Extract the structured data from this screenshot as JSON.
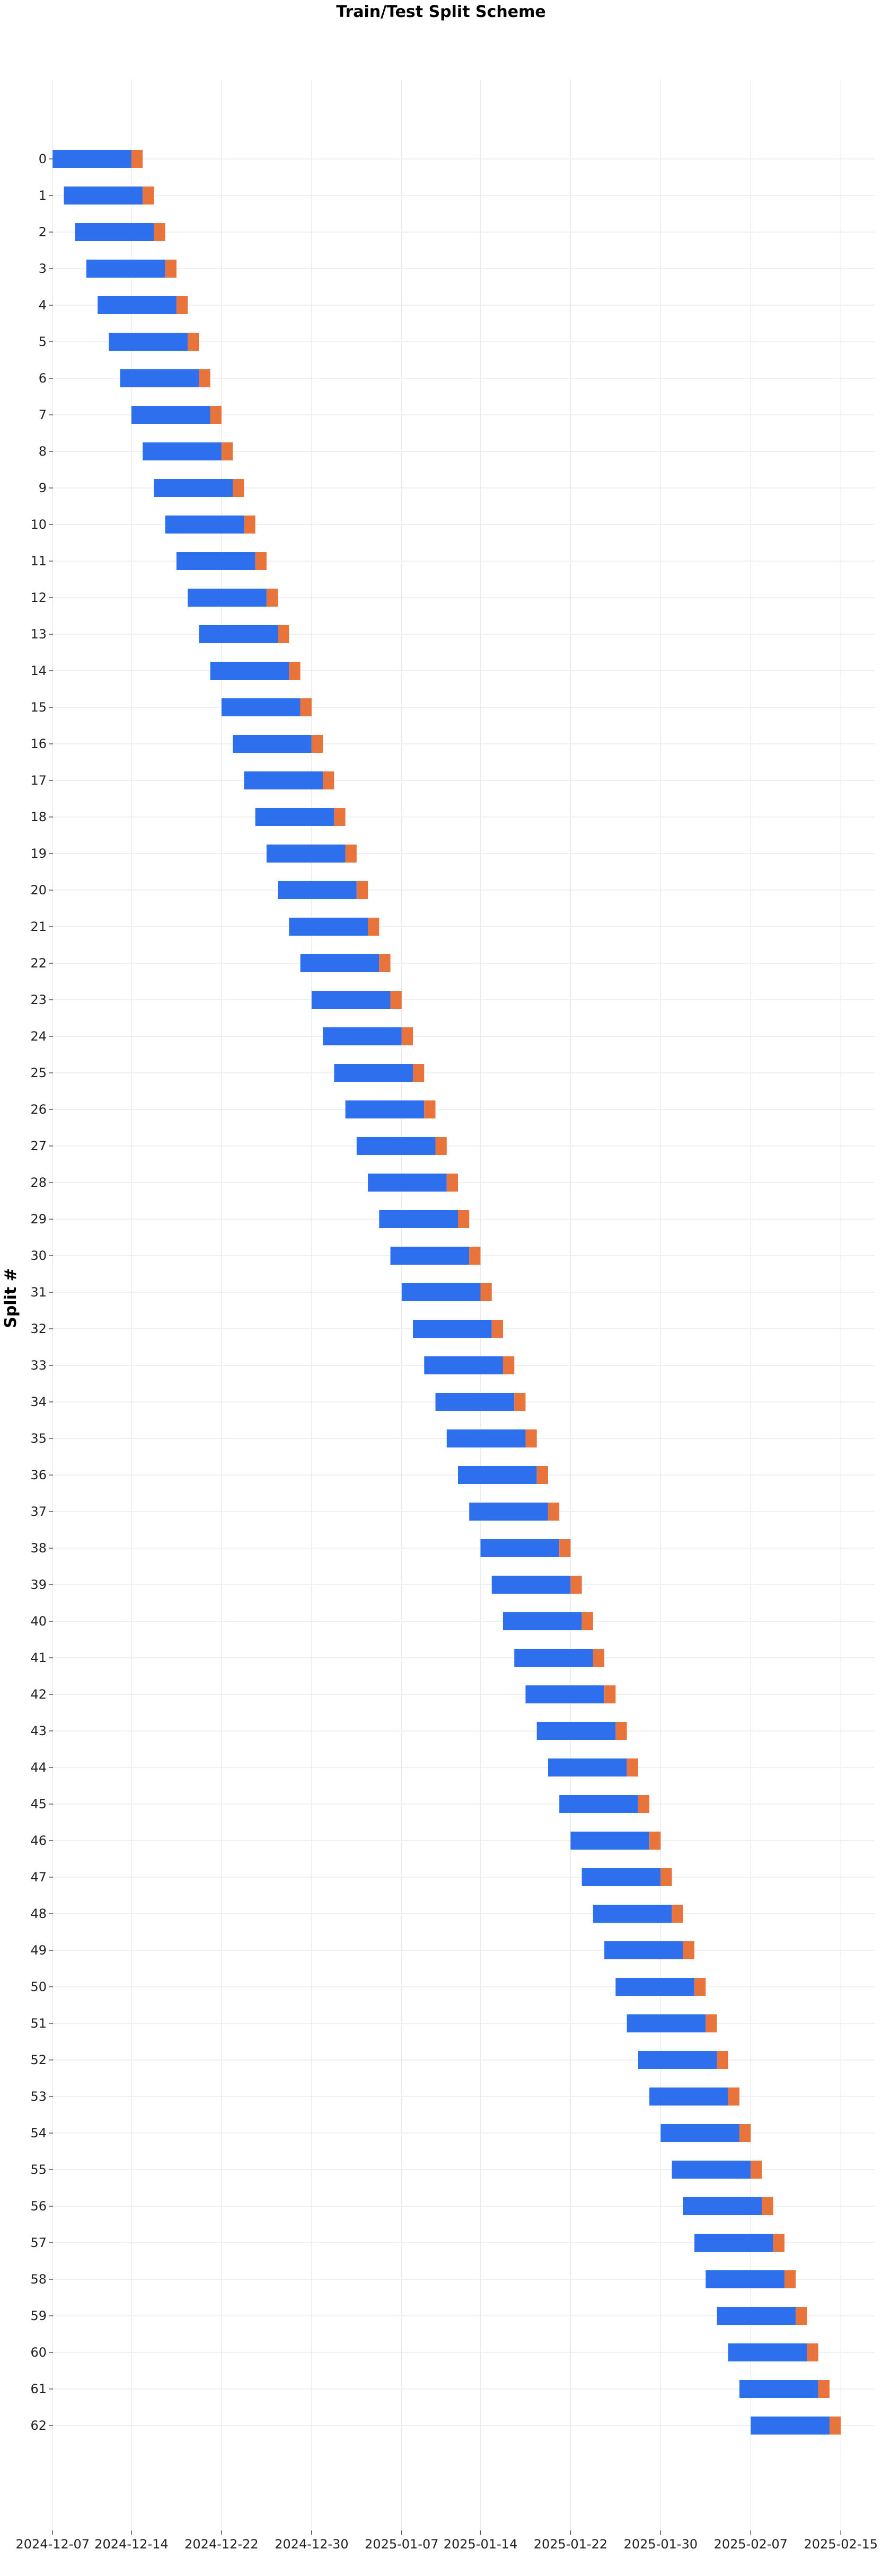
{
  "chart_data": {
    "type": "bar",
    "orientation": "horizontal-gantt",
    "title": "Train/Test Split Scheme",
    "xlabel": "",
    "ylabel": "Split #",
    "grid": true,
    "legend": null,
    "xlim": [
      "2024-12-06",
      "2025-02-18"
    ],
    "x_ticks": [
      "2024-12-07",
      "2024-12-14",
      "2024-12-22",
      "2024-12-30",
      "2025-01-07",
      "2025-01-14",
      "2025-01-22",
      "2025-01-30",
      "2025-02-07",
      "2025-02-15"
    ],
    "categories": [
      "0",
      "1",
      "2",
      "3",
      "4",
      "5",
      "6",
      "7",
      "8",
      "9",
      "10",
      "11",
      "12",
      "13",
      "14",
      "15",
      "16",
      "17",
      "18",
      "19",
      "20",
      "21",
      "22",
      "23",
      "24",
      "25",
      "26",
      "27",
      "28",
      "29",
      "30",
      "31",
      "32",
      "33",
      "34",
      "35",
      "36",
      "37",
      "38",
      "39",
      "40",
      "41",
      "42",
      "43",
      "44",
      "45",
      "46",
      "47",
      "48",
      "49",
      "50",
      "51",
      "52",
      "53",
      "54",
      "55",
      "56",
      "57",
      "58",
      "59",
      "60",
      "61",
      "62"
    ],
    "series": [
      {
        "role": "train",
        "color": "#2e6fed",
        "start": [
          "2024-12-07",
          "2024-12-08",
          "2024-12-09",
          "2024-12-10",
          "2024-12-11",
          "2024-12-12",
          "2024-12-13",
          "2024-12-14",
          "2024-12-15",
          "2024-12-16",
          "2024-12-17",
          "2024-12-18",
          "2024-12-19",
          "2024-12-20",
          "2024-12-21",
          "2024-12-22",
          "2024-12-23",
          "2024-12-24",
          "2024-12-25",
          "2024-12-26",
          "2024-12-27",
          "2024-12-28",
          "2024-12-29",
          "2024-12-30",
          "2024-12-31",
          "2025-01-01",
          "2025-01-02",
          "2025-01-03",
          "2025-01-04",
          "2025-01-05",
          "2025-01-06",
          "2025-01-07",
          "2025-01-08",
          "2025-01-09",
          "2025-01-10",
          "2025-01-11",
          "2025-01-12",
          "2025-01-13",
          "2025-01-14",
          "2025-01-15",
          "2025-01-16",
          "2025-01-17",
          "2025-01-18",
          "2025-01-19",
          "2025-01-20",
          "2025-01-21",
          "2025-01-22",
          "2025-01-23",
          "2025-01-24",
          "2025-01-25",
          "2025-01-26",
          "2025-01-27",
          "2025-01-28",
          "2025-01-29",
          "2025-01-30",
          "2025-01-31",
          "2025-02-01",
          "2025-02-02",
          "2025-02-03",
          "2025-02-04",
          "2025-02-05",
          "2025-02-06",
          "2025-02-07"
        ],
        "duration_days": 7
      },
      {
        "role": "test",
        "color": "#e8743c",
        "start": [
          "2024-12-14",
          "2024-12-15",
          "2024-12-16",
          "2024-12-17",
          "2024-12-18",
          "2024-12-19",
          "2024-12-20",
          "2024-12-21",
          "2024-12-22",
          "2024-12-23",
          "2024-12-24",
          "2024-12-25",
          "2024-12-26",
          "2024-12-27",
          "2024-12-28",
          "2024-12-29",
          "2024-12-30",
          "2024-12-31",
          "2025-01-01",
          "2025-01-02",
          "2025-01-03",
          "2025-01-04",
          "2025-01-05",
          "2025-01-06",
          "2025-01-07",
          "2025-01-08",
          "2025-01-09",
          "2025-01-10",
          "2025-01-11",
          "2025-01-12",
          "2025-01-13",
          "2025-01-14",
          "2025-01-15",
          "2025-01-16",
          "2025-01-17",
          "2025-01-18",
          "2025-01-19",
          "2025-01-20",
          "2025-01-21",
          "2025-01-22",
          "2025-01-23",
          "2025-01-24",
          "2025-01-25",
          "2025-01-26",
          "2025-01-27",
          "2025-01-28",
          "2025-01-29",
          "2025-01-30",
          "2025-01-31",
          "2025-02-01",
          "2025-02-02",
          "2025-02-03",
          "2025-02-04",
          "2025-02-05",
          "2025-02-06",
          "2025-02-07",
          "2025-02-08",
          "2025-02-09",
          "2025-02-10",
          "2025-02-11",
          "2025-02-12",
          "2025-02-13",
          "2025-02-14"
        ],
        "duration_days": 1
      }
    ]
  }
}
